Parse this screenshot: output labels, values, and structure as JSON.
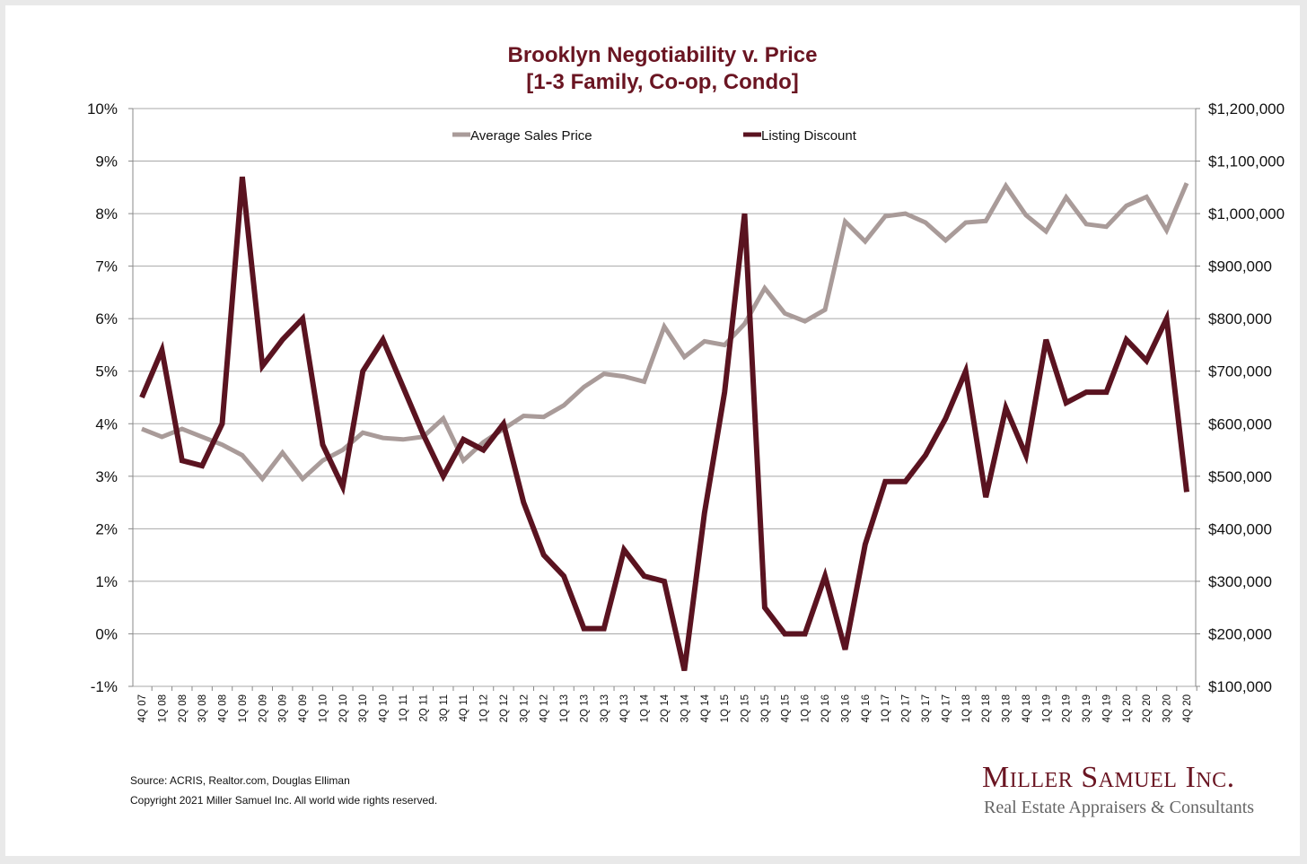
{
  "chart_data": {
    "type": "line",
    "title": "Brooklyn Negotiability v. Price",
    "subtitle": "[1-3 Family, Co-op, Condo]",
    "categories": [
      "4Q 07",
      "1Q 08",
      "2Q 08",
      "3Q 08",
      "4Q 08",
      "1Q 09",
      "2Q 09",
      "3Q 09",
      "4Q 09",
      "1Q 10",
      "2Q 10",
      "3Q 10",
      "4Q 10",
      "1Q 11",
      "2Q 11",
      "3Q 11",
      "4Q 11",
      "1Q 12",
      "2Q 12",
      "3Q 12",
      "4Q 12",
      "1Q 13",
      "2Q 13",
      "3Q 13",
      "4Q 13",
      "1Q 14",
      "2Q 14",
      "3Q 14",
      "4Q 14",
      "1Q 15",
      "2Q 15",
      "3Q 15",
      "4Q 15",
      "1Q 16",
      "2Q 16",
      "3Q 16",
      "4Q 16",
      "1Q 17",
      "2Q 17",
      "3Q 17",
      "4Q 17",
      "1Q 18",
      "2Q 18",
      "3Q 18",
      "4Q 18",
      "1Q 19",
      "2Q 19",
      "3Q 19",
      "4Q 19",
      "1Q 20",
      "2Q 20",
      "3Q 20",
      "4Q 20"
    ],
    "series": [
      {
        "name": "Average Sales Price",
        "axis": "right",
        "color": "#a99b99",
        "values": [
          590000,
          575000,
          590000,
          575000,
          560000,
          540000,
          495000,
          545000,
          495000,
          530000,
          550000,
          583000,
          573000,
          570000,
          575000,
          610000,
          530000,
          565000,
          590000,
          615000,
          613000,
          635000,
          670000,
          695000,
          690000,
          680000,
          785000,
          727000,
          757000,
          750000,
          790000,
          858000,
          810000,
          795000,
          817000,
          985000,
          947000,
          995000,
          1000000,
          983000,
          949000,
          983000,
          986000,
          1053000,
          997000,
          966000,
          1031000,
          980000,
          975000,
          1015000,
          1032000,
          968000,
          1058000
        ]
      },
      {
        "name": "Listing Discount",
        "axis": "left",
        "color": "#5a1320",
        "values": [
          4.5,
          5.4,
          3.3,
          3.2,
          4.0,
          8.7,
          5.1,
          5.6,
          6.0,
          3.6,
          2.8,
          5.0,
          5.6,
          4.7,
          3.8,
          3.0,
          3.7,
          3.5,
          4.0,
          2.5,
          1.5,
          1.1,
          0.1,
          0.1,
          1.6,
          1.1,
          1.0,
          -0.7,
          2.3,
          4.6,
          8.0,
          0.5,
          0.0,
          0.0,
          1.1,
          -0.3,
          1.7,
          2.9,
          2.9,
          3.4,
          4.1,
          5.0,
          2.6,
          4.3,
          3.4,
          5.6,
          4.4,
          4.6,
          4.6,
          5.6,
          5.2,
          6.0,
          2.7
        ]
      }
    ],
    "y_left": {
      "ylim": [
        -1,
        10
      ],
      "ticks": [
        "-1%",
        "0%",
        "1%",
        "2%",
        "3%",
        "4%",
        "5%",
        "6%",
        "7%",
        "8%",
        "9%",
        "10%"
      ]
    },
    "y_right": {
      "ylim": [
        100000,
        1200000
      ],
      "ticks": [
        "$100,000",
        "$200,000",
        "$300,000",
        "$400,000",
        "$500,000",
        "$600,000",
        "$700,000",
        "$800,000",
        "$900,000",
        "$1,000,000",
        "$1,100,000",
        "$1,200,000"
      ]
    },
    "grid": true,
    "legend": "top-center"
  },
  "footer": {
    "source": "Source: ACRIS, Realtor.com, Douglas Elliman",
    "copyright": "Copyright 2021 Miller Samuel Inc.  All world wide rights reserved."
  },
  "logo": {
    "name": "Miller Samuel Inc.",
    "tagline": "Real Estate Appraisers & Consultants"
  }
}
